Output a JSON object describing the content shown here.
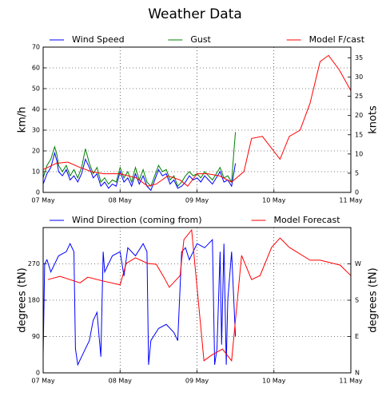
{
  "title": "Weather Data",
  "chart_data": [
    {
      "type": "line",
      "ylabel": "km/h",
      "y2label": "knots",
      "xlim": [
        0,
        4
      ],
      "xticks": [
        {
          "value": 0,
          "label": "07 May"
        },
        {
          "value": 1,
          "label": "08 May"
        },
        {
          "value": 2,
          "label": "09 May"
        },
        {
          "value": 3,
          "label": "10 May"
        },
        {
          "value": 4,
          "label": "11 May"
        }
      ],
      "ylim": [
        0,
        70
      ],
      "yticks": [
        0,
        10,
        20,
        30,
        40,
        50,
        60,
        70
      ],
      "y2lim": [
        0,
        37.8
      ],
      "y2ticks": [
        0,
        5,
        10,
        15,
        20,
        25,
        30,
        35
      ],
      "grid": true,
      "legend": "top",
      "series": [
        {
          "name": "Wind Speed",
          "color": "#0000ff",
          "x": [
            0,
            0.05,
            0.1,
            0.15,
            0.18,
            0.2,
            0.25,
            0.3,
            0.35,
            0.4,
            0.45,
            0.5,
            0.55,
            0.6,
            0.65,
            0.7,
            0.75,
            0.8,
            0.85,
            0.9,
            0.95,
            1.0,
            1.05,
            1.1,
            1.15,
            1.2,
            1.25,
            1.3,
            1.35,
            1.4,
            1.45,
            1.5,
            1.55,
            1.6,
            1.65,
            1.7,
            1.75,
            1.8,
            1.85,
            1.9,
            1.95,
            2.0,
            2.05,
            2.1,
            2.15,
            2.2,
            2.25,
            2.3,
            2.35,
            2.4,
            2.45,
            2.5
          ],
          "values": [
            4,
            9,
            12,
            19,
            15,
            10,
            8,
            11,
            6,
            8,
            5,
            9,
            16,
            12,
            7,
            9,
            3,
            5,
            2,
            4,
            3,
            10,
            5,
            7,
            3,
            9,
            4,
            8,
            3,
            1,
            6,
            11,
            8,
            9,
            4,
            6,
            2,
            3,
            5,
            8,
            6,
            7,
            5,
            8,
            6,
            4,
            7,
            10,
            5,
            6,
            3,
            14
          ]
        },
        {
          "name": "Gust",
          "color": "#008000",
          "x": [
            0,
            0.05,
            0.1,
            0.15,
            0.18,
            0.2,
            0.25,
            0.3,
            0.35,
            0.4,
            0.45,
            0.5,
            0.55,
            0.6,
            0.65,
            0.7,
            0.75,
            0.8,
            0.85,
            0.9,
            0.95,
            1.0,
            1.05,
            1.1,
            1.15,
            1.2,
            1.25,
            1.3,
            1.35,
            1.4,
            1.45,
            1.5,
            1.55,
            1.6,
            1.65,
            1.7,
            1.75,
            1.8,
            1.85,
            1.9,
            1.95,
            2.0,
            2.05,
            2.1,
            2.15,
            2.2,
            2.25,
            2.3,
            2.35,
            2.4,
            2.45,
            2.48,
            2.5
          ],
          "values": [
            7,
            13,
            16,
            22,
            18,
            13,
            10,
            13,
            8,
            11,
            7,
            12,
            21,
            14,
            9,
            12,
            5,
            7,
            4,
            6,
            5,
            12,
            7,
            10,
            5,
            12,
            6,
            11,
            5,
            3,
            8,
            13,
            10,
            11,
            6,
            8,
            3,
            5,
            8,
            10,
            8,
            9,
            7,
            10,
            8,
            6,
            9,
            12,
            7,
            8,
            5,
            20,
            29
          ]
        },
        {
          "name": "Model F/cast",
          "color": "#ff0000",
          "x": [
            0,
            0.17,
            0.32,
            0.48,
            0.63,
            0.79,
            1.0,
            1.21,
            1.36,
            1.47,
            1.62,
            1.78,
            1.88,
            2.0,
            2.14,
            2.29,
            2.45,
            2.61,
            2.71,
            2.85,
            3.08,
            3.2,
            3.34,
            3.47,
            3.6,
            3.71,
            3.85,
            4.0
          ],
          "values": [
            11,
            14,
            14.6,
            12,
            10,
            9,
            9,
            7,
            3,
            4,
            8,
            6,
            3,
            9,
            9,
            8,
            5,
            10,
            26,
            27,
            16,
            27,
            30,
            43,
            63,
            66,
            59,
            49
          ]
        }
      ]
    },
    {
      "type": "line",
      "ylabel": "degrees (tN)",
      "y2label": "degrees (tN)",
      "xlim": [
        0,
        4
      ],
      "xticks": [
        {
          "value": 0,
          "label": "07 May"
        },
        {
          "value": 1,
          "label": "08 May"
        },
        {
          "value": 2,
          "label": "09 May"
        },
        {
          "value": 3,
          "label": "10 May"
        },
        {
          "value": 4,
          "label": "11 May"
        }
      ],
      "ylim": [
        0,
        360
      ],
      "yticks": [
        0,
        90,
        180,
        270
      ],
      "y2lim": [
        0,
        360
      ],
      "y2ticks": [
        {
          "value": 0,
          "label": "N"
        },
        {
          "value": 90,
          "label": "E"
        },
        {
          "value": 180,
          "label": "S"
        },
        {
          "value": 270,
          "label": "W"
        }
      ],
      "grid": true,
      "legend": "top",
      "series": [
        {
          "name": "Wind Direction (coming from)",
          "color": "#0000ff",
          "x": [
            0,
            0.02,
            0.05,
            0.1,
            0.2,
            0.3,
            0.35,
            0.4,
            0.42,
            0.45,
            0.5,
            0.6,
            0.65,
            0.7,
            0.75,
            0.78,
            0.8,
            0.9,
            1.0,
            1.05,
            1.1,
            1.2,
            1.3,
            1.35,
            1.37,
            1.4,
            1.5,
            1.6,
            1.7,
            1.75,
            1.8,
            1.85,
            1.9,
            1.95,
            2.0,
            2.1,
            2.2,
            2.23,
            2.26,
            2.3,
            2.32,
            2.35,
            2.38,
            2.4,
            2.45,
            2.5
          ],
          "values": [
            43,
            270,
            280,
            250,
            290,
            300,
            320,
            300,
            60,
            20,
            40,
            80,
            130,
            150,
            40,
            300,
            250,
            290,
            300,
            240,
            310,
            290,
            320,
            300,
            20,
            80,
            110,
            120,
            100,
            80,
            300,
            310,
            280,
            300,
            320,
            310,
            330,
            20,
            60,
            300,
            70,
            320,
            20,
            180,
            300,
            90
          ]
        },
        {
          "name": "Model Forecast",
          "color": "#ff0000",
          "x": [
            0.06,
            0.22,
            0.48,
            0.58,
            0.79,
            1.0,
            1.08,
            1.2,
            1.36,
            1.47,
            1.57,
            1.64,
            1.78,
            1.83,
            1.93,
            2.09,
            2.19,
            2.33,
            2.45,
            2.58,
            2.71,
            2.82,
            2.97,
            3.08,
            3.2,
            3.47,
            3.6,
            3.86,
            4.0
          ],
          "values": [
            231,
            239,
            223,
            237,
            227,
            218,
            271,
            285,
            271,
            269,
            237,
            212,
            241,
            330,
            354,
            30,
            44,
            59,
            30,
            291,
            231,
            241,
            311,
            334,
            311,
            279,
            279,
            267,
            241
          ]
        }
      ]
    }
  ]
}
